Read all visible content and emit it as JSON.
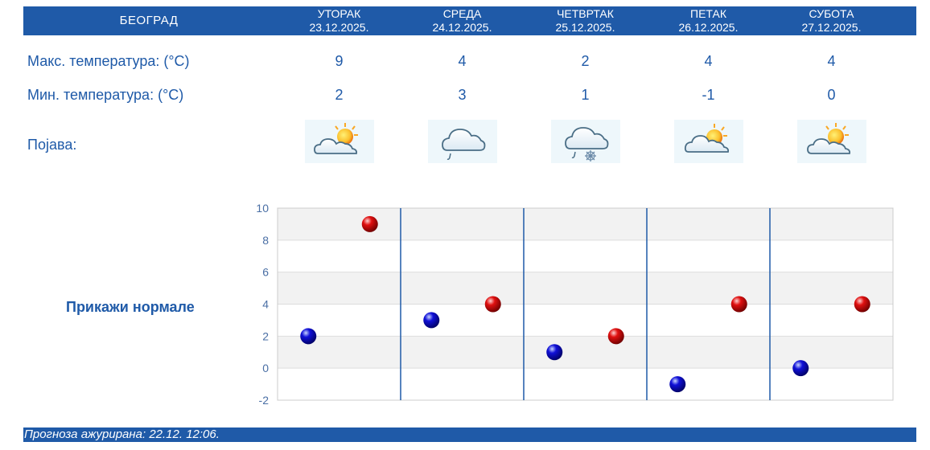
{
  "header": {
    "city": "БЕОГРАД",
    "days": [
      {
        "name": "УТОРАК",
        "date": "23.12.2025."
      },
      {
        "name": "СРЕДА",
        "date": "24.12.2025."
      },
      {
        "name": "ЧЕТВРТАК",
        "date": "25.12.2025."
      },
      {
        "name": "ПЕТАК",
        "date": "26.12.2025."
      },
      {
        "name": "СУБОТА",
        "date": "27.12.2025."
      }
    ]
  },
  "rows": {
    "max_label": "Макс. температура: (°C)",
    "max_values": [
      "9",
      "4",
      "2",
      "4",
      "4"
    ],
    "min_label": "Мин. температура: (°C)",
    "min_values": [
      "2",
      "3",
      "1",
      "-1",
      "0"
    ],
    "phenomenon_label": "Појава:",
    "phenomenon_icons": [
      "partly-cloudy-sun-icon",
      "cloud-rain-icon",
      "cloud-rain-snow-icon",
      "partly-cloudy-sun-icon",
      "partly-cloudy-sun-icon"
    ]
  },
  "normals_label": "Прикажи нормале",
  "chart_data": {
    "type": "scatter",
    "categories": [
      "23.12.2025.",
      "24.12.2025.",
      "25.12.2025.",
      "26.12.2025.",
      "27.12.2025."
    ],
    "series": [
      {
        "color": "#0000cc",
        "values": [
          2,
          3,
          1,
          -1,
          0
        ]
      },
      {
        "color": "#cc0000",
        "values": [
          9,
          4,
          2,
          4,
          4
        ]
      }
    ],
    "ylim": [
      -2,
      10
    ],
    "yticks": [
      "10",
      "8",
      "6",
      "4",
      "2",
      "0",
      "-2"
    ],
    "grid": true
  },
  "footer": {
    "updated": "Прогноза ажурирана:  22.12. 12:06."
  },
  "colors": {
    "accent": "#1f5aa8",
    "max": "#cc0000",
    "min": "#0000cc"
  }
}
